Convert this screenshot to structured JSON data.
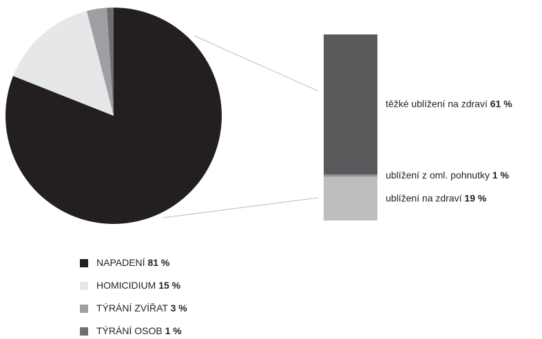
{
  "chart_data": [
    {
      "type": "pie",
      "categories": [
        "NAPADENÍ",
        "HOMICIDIUM",
        "TÝRÁNÍ ZVÍŘAT",
        "TÝRÁNÍ OSOB"
      ],
      "values": [
        81,
        15,
        3,
        1
      ],
      "value_labels": [
        "81 %",
        "15 %",
        "3 %",
        "1 %"
      ],
      "colors": [
        "#231f20",
        "#e6e7e8",
        "#9d9fa2",
        "#6d6e71"
      ]
    },
    {
      "type": "bar",
      "series": [
        {
          "name": "ublížení na zdraví",
          "color": "#bcbec0",
          "values": [
            19
          ],
          "value_labels": [
            "19 %"
          ]
        },
        {
          "name": "ublížení z oml. pohnutky",
          "color": "#939598",
          "values": [
            1
          ],
          "value_labels": [
            "1 %"
          ]
        },
        {
          "name": "těžké ublížení na zdraví",
          "color": "#58595b",
          "values": [
            61
          ],
          "value_labels": [
            "61 %"
          ]
        }
      ]
    }
  ]
}
